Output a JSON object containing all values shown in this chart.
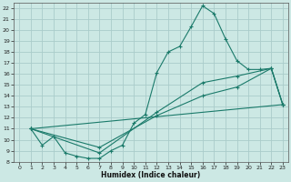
{
  "title": "",
  "xlabel": "Humidex (Indice chaleur)",
  "background_color": "#cce8e4",
  "grid_color": "#aaccca",
  "line_color": "#1a7a6a",
  "xlim": [
    -0.5,
    23.5
  ],
  "ylim": [
    8,
    22.5
  ],
  "xticks": [
    0,
    1,
    2,
    3,
    4,
    5,
    6,
    7,
    8,
    9,
    10,
    11,
    12,
    13,
    14,
    15,
    16,
    17,
    18,
    19,
    20,
    21,
    22,
    23
  ],
  "yticks": [
    8,
    9,
    10,
    11,
    12,
    13,
    14,
    15,
    16,
    17,
    18,
    19,
    20,
    21,
    22
  ],
  "series1_x": [
    1,
    2,
    3,
    4,
    5,
    6,
    7,
    8,
    9,
    10,
    11,
    12,
    13,
    14,
    15,
    16,
    17,
    18,
    19,
    20,
    21,
    22,
    23
  ],
  "series1_y": [
    11.0,
    9.5,
    10.3,
    8.8,
    8.5,
    8.3,
    8.3,
    9.0,
    9.5,
    11.5,
    12.3,
    16.1,
    18.0,
    18.5,
    20.3,
    22.2,
    21.5,
    19.2,
    17.2,
    16.4,
    16.4,
    16.5,
    13.2
  ],
  "series2_x": [
    1,
    23
  ],
  "series2_y": [
    11.0,
    13.2
  ],
  "series3_x": [
    1,
    7,
    12,
    16,
    19,
    22,
    23
  ],
  "series3_y": [
    11.0,
    8.8,
    12.5,
    15.2,
    15.8,
    16.5,
    13.2
  ],
  "series4_x": [
    1,
    7,
    12,
    16,
    19,
    22,
    23
  ],
  "series4_y": [
    11.0,
    9.3,
    12.2,
    14.0,
    14.8,
    16.5,
    13.2
  ]
}
